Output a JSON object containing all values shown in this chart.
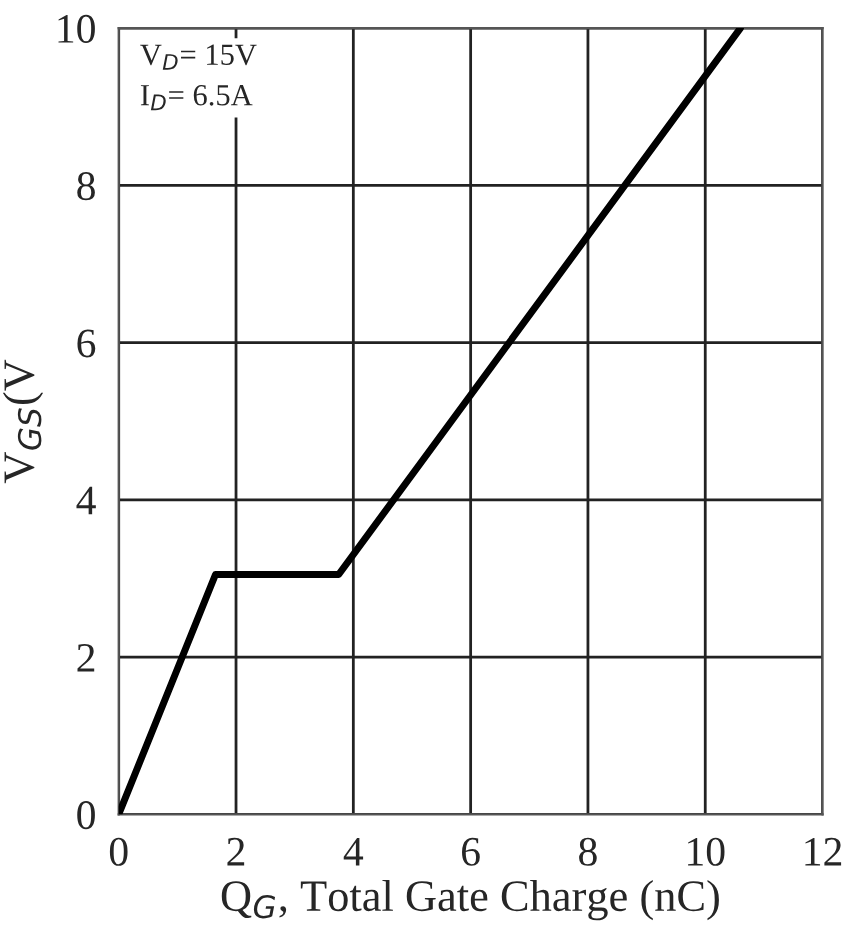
{
  "chart_data": {
    "type": "line",
    "xlabel": "Q$_{G}$, Total Gate Charge (nC)",
    "ylabel": "V$_{GS}$(V",
    "x": [
      0,
      1.65,
      3.75,
      10.6
    ],
    "series": [
      {
        "color": "#000000",
        "values": [
          0,
          3.05,
          3.05,
          10
        ]
      }
    ],
    "annotations": [
      "V$_{D}$= 15V\nI$_{D}$= 6.5A"
    ],
    "xlim": [
      0,
      12
    ],
    "ylim": [
      0,
      10
    ],
    "xticks": [
      0,
      2,
      4,
      6,
      8,
      10,
      12
    ],
    "yticks": [
      0,
      2,
      4,
      6,
      8,
      10
    ],
    "grid": true,
    "marker": "none",
    "line_style": "solid"
  }
}
